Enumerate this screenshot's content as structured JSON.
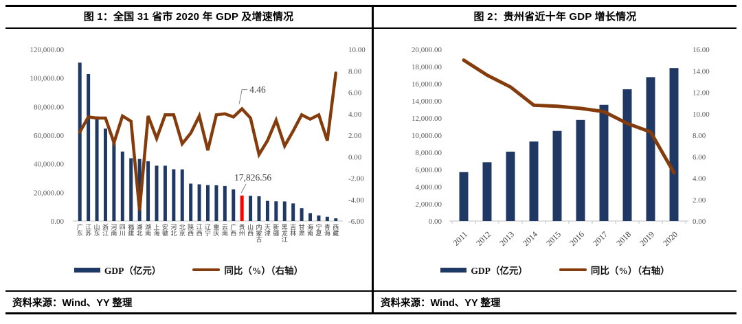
{
  "panels": [
    {
      "title": "图 1：全国 31 省市 2020 年 GDP 及增速情况",
      "source": "资料来源：Wind、YY 整理"
    },
    {
      "title": "图 2：贵州省近十年 GDP 增长情况",
      "source": "资料来源：Wind、YY 整理"
    }
  ],
  "colors": {
    "bar": "#1F3864",
    "line": "#843C0C",
    "highlight": "#FF0000",
    "axis_text": "#595959",
    "category_text": "#404040",
    "annotation_text": "#404040",
    "axis_line": "#BFBFBF",
    "leader_line": "#808080",
    "border": "#000000"
  },
  "chart_data": [
    {
      "type": "bar+line",
      "title": "图 1：全国 31 省市 2020 年 GDP 及增速情况",
      "categories": [
        "广东",
        "江苏",
        "山东",
        "浙江",
        "河南",
        "四川",
        "福建",
        "湖北",
        "湖南",
        "上海",
        "安徽",
        "河北",
        "北京",
        "陕西",
        "江西",
        "辽宁",
        "重庆",
        "云南",
        "广西",
        "贵州",
        "山西",
        "内蒙古",
        "天津",
        "新疆",
        "黑龙江",
        "吉林",
        "甘肃",
        "海南",
        "宁夏",
        "青海",
        "西藏"
      ],
      "series": [
        {
          "name": "GDP（亿元）",
          "type": "bar",
          "axis": "left",
          "values": [
            110760.94,
            102718.98,
            73129.0,
            64613.34,
            54997.07,
            48598.76,
            43903.89,
            43443.46,
            41781.49,
            38700.58,
            38680.63,
            36206.89,
            36102.55,
            26181.86,
            25691.5,
            25115.0,
            25002.79,
            24521.9,
            22156.69,
            17826.56,
            17651.93,
            17359.8,
            14083.86,
            13797.58,
            13698.5,
            12311.32,
            9016.7,
            5532.39,
            3920.55,
            3005.92,
            1902.74
          ]
        },
        {
          "name": "同比（%）（右轴）",
          "type": "line",
          "axis": "right",
          "values": [
            2.3,
            3.7,
            3.6,
            3.6,
            1.3,
            3.8,
            3.3,
            -5.0,
            3.8,
            1.7,
            3.9,
            3.9,
            1.2,
            2.2,
            3.8,
            0.6,
            3.9,
            4.0,
            3.7,
            4.46,
            3.6,
            0.2,
            1.5,
            3.4,
            1.0,
            2.4,
            3.9,
            3.5,
            3.9,
            1.5,
            7.8
          ]
        }
      ],
      "y_left": {
        "min": 0,
        "max": 120000,
        "ticks": [
          "120,000.00",
          "100,000.00",
          "80,000.00",
          "60,000.00",
          "40,000.00",
          "20,000.00",
          "0.00"
        ]
      },
      "y_right": {
        "min": -6,
        "max": 10,
        "ticks": [
          "10.00",
          "8.00",
          "6.00",
          "4.00",
          "2.00",
          "0.00",
          "-2.00",
          "-4.00",
          "-6.00"
        ]
      },
      "highlight": {
        "index": 19,
        "category": "贵州"
      },
      "annotations": [
        {
          "text": "4.46",
          "series": 1,
          "index": 19
        },
        {
          "text": "17,826.56",
          "series": 0,
          "index": 19
        }
      ],
      "x_label_style": "vertical",
      "grid": false,
      "legend_position": "bottom"
    },
    {
      "type": "bar+line",
      "title": "图 2：贵州省近十年 GDP 增长情况",
      "categories": [
        "2011",
        "2012",
        "2013",
        "2014",
        "2015",
        "2016",
        "2017",
        "2018",
        "2019",
        "2020"
      ],
      "series": [
        {
          "name": "GDP（亿元）",
          "type": "bar",
          "axis": "left",
          "values": [
            5701.84,
            6852.2,
            8086.86,
            9266.39,
            10502.56,
            11776.73,
            13540.83,
            15353.21,
            16769.34,
            17826.56
          ]
        },
        {
          "name": "同比（%）（右轴）",
          "type": "line",
          "axis": "right",
          "values": [
            15.0,
            13.6,
            12.5,
            10.8,
            10.7,
            10.5,
            10.2,
            9.1,
            8.3,
            4.5
          ]
        }
      ],
      "y_left": {
        "min": 0,
        "max": 20000,
        "ticks": [
          "20,000.00",
          "18,000.00",
          "16,000.00",
          "14,000.00",
          "12,000.00",
          "10,000.00",
          "8,000.00",
          "6,000.00",
          "4,000.00",
          "2,000.00",
          "0.00"
        ]
      },
      "y_right": {
        "min": 0,
        "max": 16,
        "ticks": [
          "16.00",
          "14.00",
          "12.00",
          "10.00",
          "8.00",
          "6.00",
          "4.00",
          "2.00",
          "0.00"
        ]
      },
      "highlight": null,
      "annotations": [],
      "x_label_style": "rotate45",
      "grid": false,
      "legend_position": "bottom"
    }
  ]
}
